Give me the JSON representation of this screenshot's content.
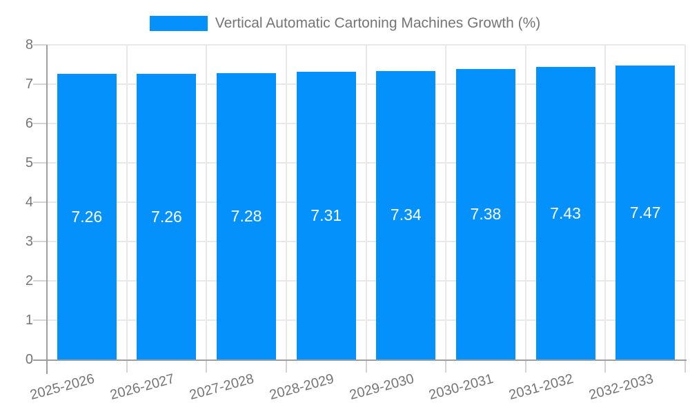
{
  "legend": {
    "label": "Vertical Automatic Cartoning Machines Growth (%)"
  },
  "chart_data": {
    "type": "bar",
    "title": "Vertical Automatic Cartoning Machines Growth (%)",
    "categories": [
      "2025-2026",
      "2026-2027",
      "2027-2028",
      "2028-2029",
      "2029-2030",
      "2030-2031",
      "2031-2032",
      "2032-2033"
    ],
    "values": [
      7.26,
      7.26,
      7.28,
      7.31,
      7.34,
      7.38,
      7.43,
      7.47
    ],
    "value_labels": [
      "7.26",
      "7.26",
      "7.28",
      "7.31",
      "7.34",
      "7.38",
      "7.43",
      "7.47"
    ],
    "xlabel": "",
    "ylabel": "",
    "ylim": [
      0,
      8
    ],
    "yticks": [
      0,
      1,
      2,
      3,
      4,
      5,
      6,
      7,
      8
    ],
    "grid": true,
    "legend_position": "top",
    "x_label_rotation_deg": -15,
    "colors": {
      "bar": "#0591fb",
      "value_label": "#ffffff",
      "axis_text": "#757575",
      "legend_text": "#757575",
      "grid_line": "#e8e8e8",
      "tick_line": "#d4d4d4",
      "axis_line": "#9e9e9e",
      "background": "#ffffff"
    }
  }
}
